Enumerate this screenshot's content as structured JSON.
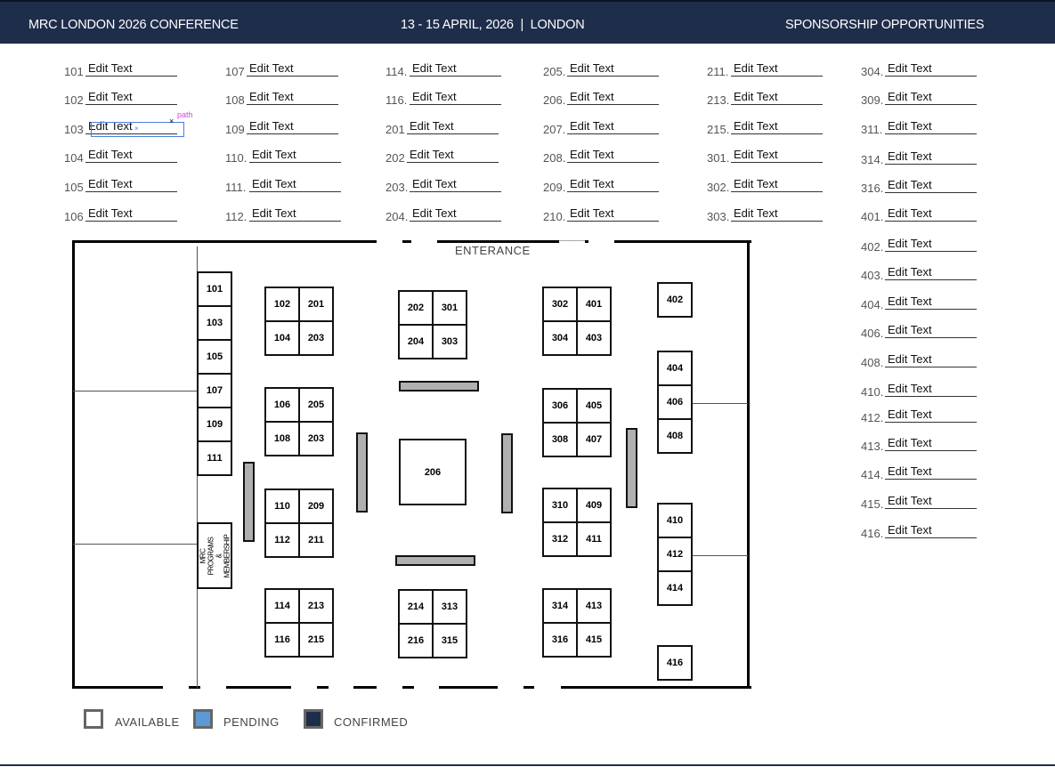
{
  "header": {
    "title": "MRC LONDON 2026 CONFERENCE",
    "dates": "13 - 15 APRIL, 2026  |  LONDON",
    "section": "SPONSORSHIP OPPORTUNITIES"
  },
  "field_placeholder": "Edit Text",
  "columns": [
    [
      "101 ",
      "102",
      "103",
      "104",
      "105",
      "106"
    ],
    [
      "107",
      "108",
      "109",
      "110.",
      "111.",
      "112."
    ],
    [
      "114.",
      "116.",
      "201",
      "202",
      "203.",
      "204."
    ],
    [
      "205.",
      "206.",
      "207.",
      "208.",
      "209.",
      "210."
    ],
    [
      "211.",
      "213.",
      "215.",
      "301.",
      "302.",
      "303."
    ],
    [
      "304.",
      "309.",
      "311.",
      "314.",
      "316.",
      "401.",
      "402.",
      "403.",
      "404.",
      "406.",
      "408.",
      "410.",
      "412.",
      "413.",
      "414.",
      "415.",
      "416."
    ]
  ],
  "selection_label": "path",
  "floorplan": {
    "entrance_label": "ENTERANCE",
    "special_booth": "MRC PROGRAMS & MEMBERSHIP",
    "booths": [
      "101",
      "103",
      "105",
      "107",
      "109",
      "111",
      "102",
      "201",
      "104",
      "203",
      "106",
      "205",
      "108",
      "203",
      "110",
      "209",
      "112",
      "211",
      "114",
      "213",
      "116",
      "215",
      "202",
      "301",
      "204",
      "303",
      "206",
      "214",
      "313",
      "216",
      "315",
      "302",
      "401",
      "304",
      "403",
      "306",
      "405",
      "308",
      "407",
      "310",
      "409",
      "312",
      "411",
      "314",
      "413",
      "316",
      "415",
      "402",
      "404",
      "406",
      "408",
      "410",
      "412",
      "414",
      "416"
    ]
  },
  "legend": [
    {
      "label": "AVAILABLE",
      "color": "#ffffff"
    },
    {
      "label": "PENDING",
      "color": "#5b9bd5"
    },
    {
      "label": "CONFIRMED",
      "color": "#1e2d4a"
    }
  ]
}
